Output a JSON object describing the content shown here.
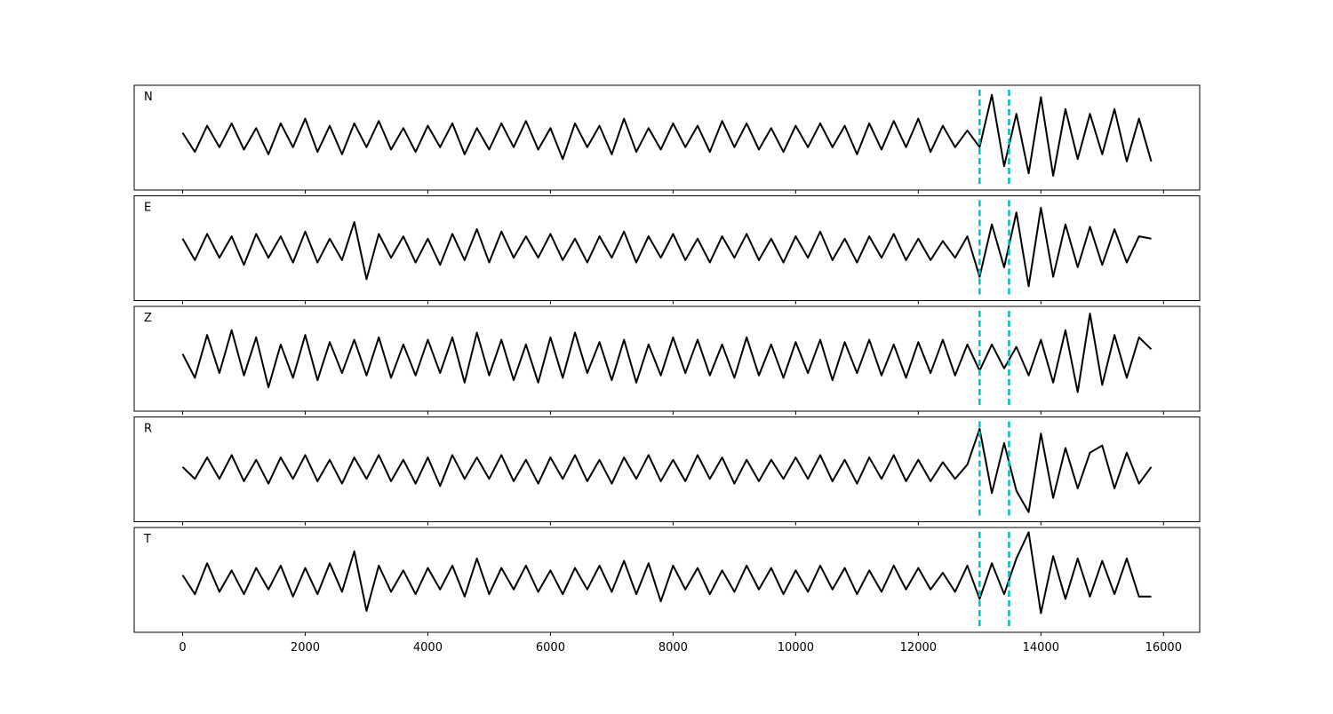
{
  "chart_data": {
    "type": "line",
    "stacked_panels": true,
    "x": [
      0,
      200,
      400,
      600,
      800,
      1000,
      1200,
      1400,
      1600,
      1800,
      2000,
      2200,
      2400,
      2600,
      2800,
      3000,
      3200,
      3400,
      3600,
      3800,
      4000,
      4200,
      4400,
      4600,
      4800,
      5000,
      5200,
      5400,
      5600,
      5800,
      6000,
      6200,
      6400,
      6600,
      6800,
      7000,
      7200,
      7400,
      7600,
      7800,
      8000,
      8200,
      8400,
      8600,
      8800,
      9000,
      9200,
      9400,
      9600,
      9800,
      10000,
      10200,
      10400,
      10600,
      10800,
      11000,
      11200,
      11400,
      11600,
      11800,
      12000,
      12200,
      12400,
      12600,
      12800,
      13000,
      13200,
      13400,
      13600,
      13800,
      14000,
      14200,
      14400,
      14600,
      14800,
      15000,
      15200,
      15400,
      15600,
      15800
    ],
    "series": [
      {
        "name": "N",
        "color": "#000000",
        "values": [
          0.1,
          -0.3,
          0.25,
          -0.2,
          0.3,
          -0.25,
          0.2,
          -0.35,
          0.3,
          -0.2,
          0.4,
          -0.3,
          0.25,
          -0.35,
          0.3,
          -0.2,
          0.35,
          -0.25,
          0.2,
          -0.3,
          0.25,
          -0.2,
          0.3,
          -0.35,
          0.2,
          -0.25,
          0.3,
          -0.2,
          0.35,
          -0.25,
          0.2,
          -0.45,
          0.3,
          -0.2,
          0.25,
          -0.35,
          0.4,
          -0.3,
          0.2,
          -0.25,
          0.3,
          -0.2,
          0.25,
          -0.3,
          0.35,
          -0.2,
          0.3,
          -0.25,
          0.2,
          -0.3,
          0.25,
          -0.2,
          0.3,
          -0.2,
          0.25,
          -0.35,
          0.3,
          -0.25,
          0.35,
          -0.2,
          0.4,
          -0.3,
          0.25,
          -0.2,
          0.15,
          -0.2,
          0.9,
          -0.6,
          0.5,
          -0.75,
          0.85,
          -0.8,
          0.6,
          -0.45,
          0.5,
          -0.35,
          0.6,
          -0.5,
          0.4,
          -0.5
        ]
      },
      {
        "name": "E",
        "color": "#000000",
        "values": [
          0.2,
          -0.25,
          0.3,
          -0.2,
          0.25,
          -0.35,
          0.3,
          -0.2,
          0.25,
          -0.3,
          0.35,
          -0.3,
          0.2,
          -0.25,
          0.55,
          -0.65,
          0.3,
          -0.2,
          0.25,
          -0.3,
          0.2,
          -0.35,
          0.3,
          -0.25,
          0.4,
          -0.3,
          0.35,
          -0.2,
          0.25,
          -0.2,
          0.3,
          -0.25,
          0.2,
          -0.3,
          0.25,
          -0.2,
          0.35,
          -0.3,
          0.25,
          -0.2,
          0.3,
          -0.25,
          0.2,
          -0.3,
          0.25,
          -0.2,
          0.3,
          -0.25,
          0.2,
          -0.3,
          0.25,
          -0.2,
          0.35,
          -0.25,
          0.2,
          -0.3,
          0.25,
          -0.2,
          0.3,
          -0.25,
          0.2,
          -0.25,
          0.15,
          -0.2,
          0.25,
          -0.6,
          0.5,
          -0.4,
          0.75,
          -0.8,
          0.85,
          -0.6,
          0.5,
          -0.4,
          0.45,
          -0.35,
          0.4,
          -0.3,
          0.25,
          0.2
        ]
      },
      {
        "name": "Z",
        "color": "#000000",
        "values": [
          0.1,
          -0.4,
          0.5,
          -0.3,
          0.6,
          -0.35,
          0.45,
          -0.6,
          0.3,
          -0.4,
          0.5,
          -0.45,
          0.35,
          -0.3,
          0.4,
          -0.35,
          0.45,
          -0.4,
          0.3,
          -0.35,
          0.4,
          -0.3,
          0.45,
          -0.5,
          0.55,
          -0.35,
          0.4,
          -0.45,
          0.3,
          -0.5,
          0.45,
          -0.4,
          0.55,
          -0.3,
          0.35,
          -0.45,
          0.4,
          -0.5,
          0.3,
          -0.35,
          0.45,
          -0.3,
          0.4,
          -0.35,
          0.3,
          -0.4,
          0.45,
          -0.35,
          0.3,
          -0.4,
          0.35,
          -0.3,
          0.4,
          -0.45,
          0.35,
          -0.3,
          0.4,
          -0.35,
          0.3,
          -0.4,
          0.35,
          -0.3,
          0.4,
          -0.35,
          0.3,
          -0.25,
          0.3,
          -0.2,
          0.25,
          -0.35,
          0.4,
          -0.5,
          0.6,
          -0.7,
          0.95,
          -0.55,
          0.5,
          -0.4,
          0.45,
          0.2
        ]
      },
      {
        "name": "R",
        "color": "#000000",
        "values": [
          0.05,
          -0.2,
          0.25,
          -0.2,
          0.3,
          -0.25,
          0.2,
          -0.3,
          0.25,
          -0.2,
          0.3,
          -0.25,
          0.2,
          -0.3,
          0.25,
          -0.2,
          0.3,
          -0.25,
          0.2,
          -0.3,
          0.25,
          -0.35,
          0.3,
          -0.2,
          0.25,
          -0.2,
          0.3,
          -0.25,
          0.2,
          -0.3,
          0.25,
          -0.2,
          0.3,
          -0.25,
          0.2,
          -0.3,
          0.25,
          -0.2,
          0.3,
          -0.25,
          0.2,
          -0.25,
          0.3,
          -0.2,
          0.25,
          -0.3,
          0.2,
          -0.25,
          0.2,
          -0.2,
          0.25,
          -0.2,
          0.3,
          -0.25,
          0.2,
          -0.3,
          0.25,
          -0.2,
          0.3,
          -0.25,
          0.2,
          -0.25,
          0.15,
          -0.2,
          0.1,
          0.85,
          -0.5,
          0.55,
          -0.45,
          -0.9,
          0.75,
          -0.6,
          0.45,
          -0.4,
          0.35,
          0.5,
          -0.4,
          0.35,
          -0.3,
          0.05
        ]
      },
      {
        "name": "T",
        "color": "#000000",
        "values": [
          0.1,
          -0.3,
          0.35,
          -0.25,
          0.2,
          -0.3,
          0.25,
          -0.2,
          0.3,
          -0.35,
          0.25,
          -0.3,
          0.35,
          -0.25,
          0.6,
          -0.65,
          0.3,
          -0.25,
          0.2,
          -0.3,
          0.25,
          -0.2,
          0.3,
          -0.35,
          0.45,
          -0.3,
          0.25,
          -0.2,
          0.3,
          -0.25,
          0.2,
          -0.3,
          0.25,
          -0.2,
          0.3,
          -0.25,
          0.4,
          -0.3,
          0.35,
          -0.45,
          0.3,
          -0.2,
          0.25,
          -0.3,
          0.2,
          -0.25,
          0.3,
          -0.2,
          0.25,
          -0.3,
          0.2,
          -0.25,
          0.3,
          -0.2,
          0.25,
          -0.3,
          0.2,
          -0.25,
          0.3,
          -0.2,
          0.25,
          -0.2,
          0.15,
          -0.25,
          0.3,
          -0.4,
          0.35,
          -0.3,
          0.45,
          1.0,
          -0.7,
          0.5,
          -0.4,
          0.45,
          -0.35,
          0.4,
          -0.3,
          0.45,
          -0.35,
          -0.35
        ]
      }
    ],
    "markers": [
      13000,
      13480
    ],
    "marker_color": "#00bfbf",
    "xlim": [
      -790,
      16590
    ],
    "xticks": [
      0,
      2000,
      4000,
      6000,
      8000,
      10000,
      12000,
      14000,
      16000
    ],
    "ylim": [
      -1.1,
      1.1
    ]
  }
}
